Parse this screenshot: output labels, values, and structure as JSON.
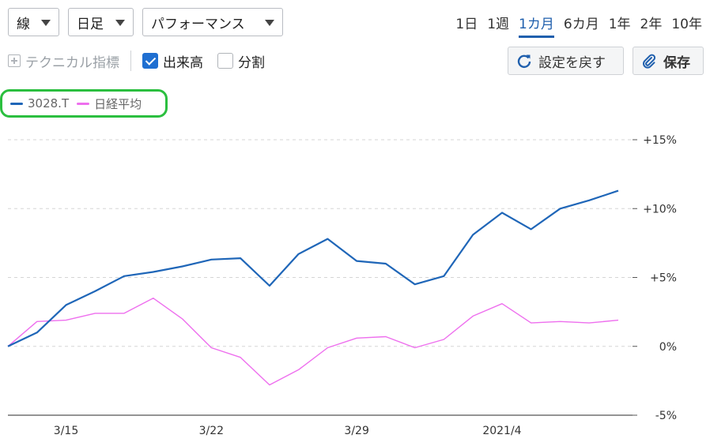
{
  "toolbar": {
    "chart_type": "線",
    "interval": "日足",
    "mode": "パフォーマンス",
    "periods": [
      "1日",
      "1週",
      "1カ月",
      "6カ月",
      "1年",
      "2年",
      "10年"
    ],
    "active_period": "1カ月",
    "technical_label": "テクニカル指標",
    "volume_label": "出来高",
    "volume_checked": true,
    "split_label": "分割",
    "split_checked": false,
    "reset_label": "設定を戻す",
    "save_label": "保存"
  },
  "colors": {
    "series_a": "#1f66b8",
    "series_b": "#ee6fee",
    "accent": "#1f5fad",
    "legend_border": "#2bbf3f"
  },
  "chart_data": {
    "type": "line",
    "x": [
      "3/11",
      "3/12",
      "3/15",
      "3/16",
      "3/17",
      "3/18",
      "3/19",
      "3/22",
      "3/23",
      "3/24",
      "3/25",
      "3/26",
      "3/29",
      "3/30",
      "3/31",
      "4/1",
      "4/2",
      "4/5",
      "4/6",
      "4/7",
      "4/8",
      "4/9"
    ],
    "x_tick_labels": [
      "3/15",
      "3/22",
      "3/29",
      "2021/4"
    ],
    "x_tick_positions": [
      "3/15",
      "3/22",
      "3/29",
      "4/5"
    ],
    "series": [
      {
        "name": "3028.T",
        "color": "#1f66b8",
        "values": [
          0.0,
          1.0,
          3.0,
          4.0,
          5.1,
          5.4,
          5.8,
          6.3,
          6.4,
          4.4,
          6.7,
          7.8,
          6.2,
          6.0,
          4.5,
          5.1,
          8.1,
          9.7,
          8.5,
          10.0,
          10.6,
          11.3
        ]
      },
      {
        "name": "日経平均",
        "color": "#ee6fee",
        "values": [
          0.0,
          1.8,
          1.9,
          2.4,
          2.4,
          3.5,
          2.0,
          -0.1,
          -0.8,
          -2.8,
          -1.7,
          -0.1,
          0.6,
          0.7,
          -0.1,
          0.5,
          2.2,
          3.1,
          1.7,
          1.8,
          1.7,
          1.9
        ]
      }
    ],
    "y_ticks": [
      15,
      10,
      5,
      0,
      -5
    ],
    "y_tick_labels": [
      "+15%",
      "+10%",
      "+5%",
      "0%",
      "-5%"
    ],
    "ylim": [
      -5,
      15
    ],
    "grid": true,
    "legend": "top-left"
  }
}
